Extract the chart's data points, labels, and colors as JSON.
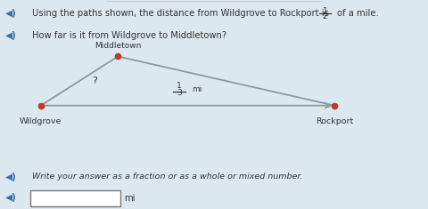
{
  "bg_color": "#dce8f0",
  "text_color": "#3a6ea8",
  "line_color": "#8a9a9a",
  "dot_color": "#c0392b",
  "dark_text": "#333333",
  "title_line1": "Using the paths shown, the distance from Wildgrove to Rockport is",
  "title_frac_num": "1",
  "title_frac_den": "2",
  "title_line1_end": "of a mile.",
  "title_line2": "How far is it from Wildgrove to Middletown?",
  "wildgrove_label": "Wildgrove",
  "middletown_label": "Middletown",
  "rockport_label": "Rockport",
  "question_mark": "?",
  "seg_num": "1",
  "seg_den": "3",
  "seg_mi": "mi",
  "bottom_text": "Write your answer as a fraction or as a whole or mixed number.",
  "input_mi": "mi",
  "wg": [
    0.095,
    0.495
  ],
  "mt": [
    0.275,
    0.73
  ],
  "rp": [
    0.78,
    0.495
  ]
}
